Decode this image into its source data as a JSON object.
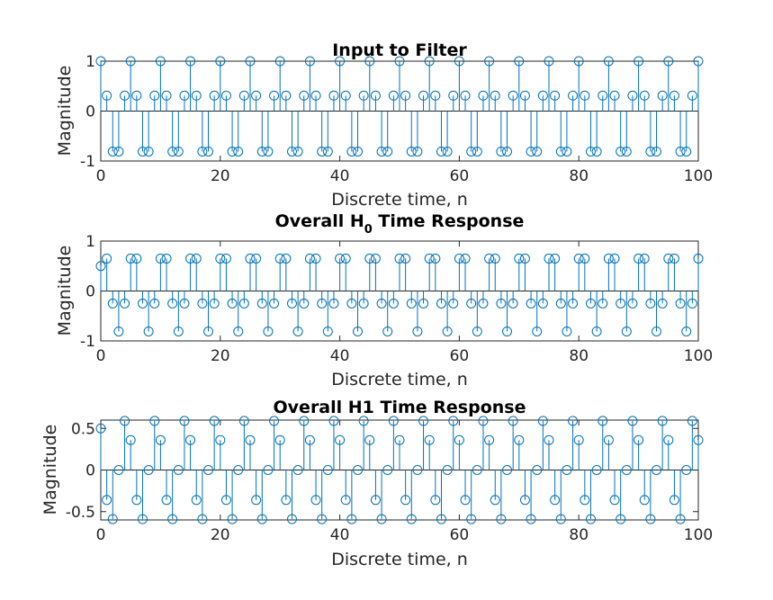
{
  "chart_data": [
    {
      "type": "stem",
      "title": "Input to Filter",
      "xlabel": "Discrete time, n",
      "ylabel": "Magnitude",
      "xlim": [
        0,
        100
      ],
      "ylim": [
        -1,
        1
      ],
      "xticks": [
        "0",
        "20",
        "40",
        "60",
        "80",
        "100"
      ],
      "yticks": [
        "-1",
        "0",
        "1"
      ],
      "n": [
        0,
        1,
        2,
        3,
        4,
        5,
        6,
        7,
        8,
        9,
        10,
        11,
        12,
        13,
        14,
        15,
        16,
        17,
        18,
        19,
        20,
        21,
        22,
        23,
        24,
        25,
        26,
        27,
        28,
        29,
        30,
        31,
        32,
        33,
        34,
        35,
        36,
        37,
        38,
        39,
        40,
        41,
        42,
        43,
        44,
        45,
        46,
        47,
        48,
        49,
        50,
        51,
        52,
        53,
        54,
        55,
        56,
        57,
        58,
        59,
        60,
        61,
        62,
        63,
        64,
        65,
        66,
        67,
        68,
        69,
        70,
        71,
        72,
        73,
        74,
        75,
        76,
        77,
        78,
        79,
        80,
        81,
        82,
        83,
        84,
        85,
        86,
        87,
        88,
        89,
        90,
        91,
        92,
        93,
        94,
        95,
        96,
        97,
        98,
        99,
        100
      ],
      "values": [
        1.0,
        0.31,
        -0.81,
        -0.81,
        0.31,
        1.0,
        0.31,
        -0.81,
        -0.81,
        0.31,
        1.0,
        0.31,
        -0.81,
        -0.81,
        0.31,
        1.0,
        0.31,
        -0.81,
        -0.81,
        0.31,
        1.0,
        0.31,
        -0.81,
        -0.81,
        0.31,
        1.0,
        0.31,
        -0.81,
        -0.81,
        0.31,
        1.0,
        0.31,
        -0.81,
        -0.81,
        0.31,
        1.0,
        0.31,
        -0.81,
        -0.81,
        0.31,
        1.0,
        0.31,
        -0.81,
        -0.81,
        0.31,
        1.0,
        0.31,
        -0.81,
        -0.81,
        0.31,
        1.0,
        0.31,
        -0.81,
        -0.81,
        0.31,
        1.0,
        0.31,
        -0.81,
        -0.81,
        0.31,
        1.0,
        0.31,
        -0.81,
        -0.81,
        0.31,
        1.0,
        0.31,
        -0.81,
        -0.81,
        0.31,
        1.0,
        0.31,
        -0.81,
        -0.81,
        0.31,
        1.0,
        0.31,
        -0.81,
        -0.81,
        0.31,
        1.0,
        0.31,
        -0.81,
        -0.81,
        0.31,
        1.0,
        0.31,
        -0.81,
        -0.81,
        0.31,
        1.0,
        0.31,
        -0.81,
        -0.81,
        0.31,
        1.0,
        0.31,
        -0.81,
        -0.81,
        0.31,
        1.0
      ]
    },
    {
      "type": "stem",
      "title_main": "Overall H",
      "title_sub": "0",
      "title_rest": " Time Response",
      "xlabel": "Discrete time, n",
      "ylabel": "Magnitude",
      "xlim": [
        0,
        100
      ],
      "ylim": [
        -1,
        1
      ],
      "xticks": [
        "0",
        "20",
        "40",
        "60",
        "80",
        "100"
      ],
      "yticks": [
        "-1",
        "0",
        "1"
      ],
      "n": [
        0,
        1,
        2,
        3,
        4,
        5,
        6,
        7,
        8,
        9,
        10,
        11,
        12,
        13,
        14,
        15,
        16,
        17,
        18,
        19,
        20,
        21,
        22,
        23,
        24,
        25,
        26,
        27,
        28,
        29,
        30,
        31,
        32,
        33,
        34,
        35,
        36,
        37,
        38,
        39,
        40,
        41,
        42,
        43,
        44,
        45,
        46,
        47,
        48,
        49,
        50,
        51,
        52,
        53,
        54,
        55,
        56,
        57,
        58,
        59,
        60,
        61,
        62,
        63,
        64,
        65,
        66,
        67,
        68,
        69,
        70,
        71,
        72,
        73,
        74,
        75,
        76,
        77,
        78,
        79,
        80,
        81,
        82,
        83,
        84,
        85,
        86,
        87,
        88,
        89,
        90,
        91,
        92,
        93,
        94,
        95,
        96,
        97,
        98,
        99,
        100
      ],
      "values": [
        0.5,
        0.65,
        -0.25,
        -0.81,
        -0.25,
        0.65,
        0.65,
        -0.25,
        -0.81,
        -0.25,
        0.65,
        0.65,
        -0.25,
        -0.81,
        -0.25,
        0.65,
        0.65,
        -0.25,
        -0.81,
        -0.25,
        0.65,
        0.65,
        -0.25,
        -0.81,
        -0.25,
        0.65,
        0.65,
        -0.25,
        -0.81,
        -0.25,
        0.65,
        0.65,
        -0.25,
        -0.81,
        -0.25,
        0.65,
        0.65,
        -0.25,
        -0.81,
        -0.25,
        0.65,
        0.65,
        -0.25,
        -0.81,
        -0.25,
        0.65,
        0.65,
        -0.25,
        -0.81,
        -0.25,
        0.65,
        0.65,
        -0.25,
        -0.81,
        -0.25,
        0.65,
        0.65,
        -0.25,
        -0.81,
        -0.25,
        0.65,
        0.65,
        -0.25,
        -0.81,
        -0.25,
        0.65,
        0.65,
        -0.25,
        -0.81,
        -0.25,
        0.65,
        0.65,
        -0.25,
        -0.81,
        -0.25,
        0.65,
        0.65,
        -0.25,
        -0.81,
        -0.25,
        0.65,
        0.65,
        -0.25,
        -0.81,
        -0.25,
        0.65,
        0.65,
        -0.25,
        -0.81,
        -0.25,
        0.65,
        0.65,
        -0.25,
        -0.81,
        -0.25,
        0.65,
        0.65,
        -0.25,
        -0.81,
        -0.25,
        0.65
      ]
    },
    {
      "type": "stem",
      "title": "Overall H1 Time Response",
      "xlabel": "Discrete time, n",
      "ylabel": "Magnitude",
      "xlim": [
        0,
        100
      ],
      "ylim": [
        -0.6,
        0.6
      ],
      "xticks": [
        "0",
        "20",
        "40",
        "60",
        "80",
        "100"
      ],
      "yticks": [
        "-0.5",
        "0",
        "0.5"
      ],
      "n": [
        0,
        1,
        2,
        3,
        4,
        5,
        6,
        7,
        8,
        9,
        10,
        11,
        12,
        13,
        14,
        15,
        16,
        17,
        18,
        19,
        20,
        21,
        22,
        23,
        24,
        25,
        26,
        27,
        28,
        29,
        30,
        31,
        32,
        33,
        34,
        35,
        36,
        37,
        38,
        39,
        40,
        41,
        42,
        43,
        44,
        45,
        46,
        47,
        48,
        49,
        50,
        51,
        52,
        53,
        54,
        55,
        56,
        57,
        58,
        59,
        60,
        61,
        62,
        63,
        64,
        65,
        66,
        67,
        68,
        69,
        70,
        71,
        72,
        73,
        74,
        75,
        76,
        77,
        78,
        79,
        80,
        81,
        82,
        83,
        84,
        85,
        86,
        87,
        88,
        89,
        90,
        91,
        92,
        93,
        94,
        95,
        96,
        97,
        98,
        99,
        100
      ],
      "values": [
        0.5,
        -0.36,
        -0.59,
        0.0,
        0.59,
        0.36,
        -0.36,
        -0.59,
        0.0,
        0.59,
        0.36,
        -0.36,
        -0.59,
        0.0,
        0.59,
        0.36,
        -0.36,
        -0.59,
        0.0,
        0.59,
        0.36,
        -0.36,
        -0.59,
        0.0,
        0.59,
        0.36,
        -0.36,
        -0.59,
        0.0,
        0.59,
        0.36,
        -0.36,
        -0.59,
        0.0,
        0.59,
        0.36,
        -0.36,
        -0.59,
        0.0,
        0.59,
        0.36,
        -0.36,
        -0.59,
        0.0,
        0.59,
        0.36,
        -0.36,
        -0.59,
        0.0,
        0.59,
        0.36,
        -0.36,
        -0.59,
        0.0,
        0.59,
        0.36,
        -0.36,
        -0.59,
        0.0,
        0.59,
        0.36,
        -0.36,
        -0.59,
        0.0,
        0.59,
        0.36,
        -0.36,
        -0.59,
        0.0,
        0.59,
        0.36,
        -0.36,
        -0.59,
        0.0,
        0.59,
        0.36,
        -0.36,
        -0.59,
        0.0,
        0.59,
        0.36,
        -0.36,
        -0.59,
        0.0,
        0.59,
        0.36,
        -0.36,
        -0.59,
        0.0,
        0.59,
        0.36,
        -0.36,
        -0.59,
        0.0,
        0.59,
        0.36,
        -0.36,
        -0.59,
        0.0,
        0.59,
        0.36
      ]
    }
  ],
  "colors": {
    "stem": "#0072bd",
    "axes": "#262626"
  }
}
